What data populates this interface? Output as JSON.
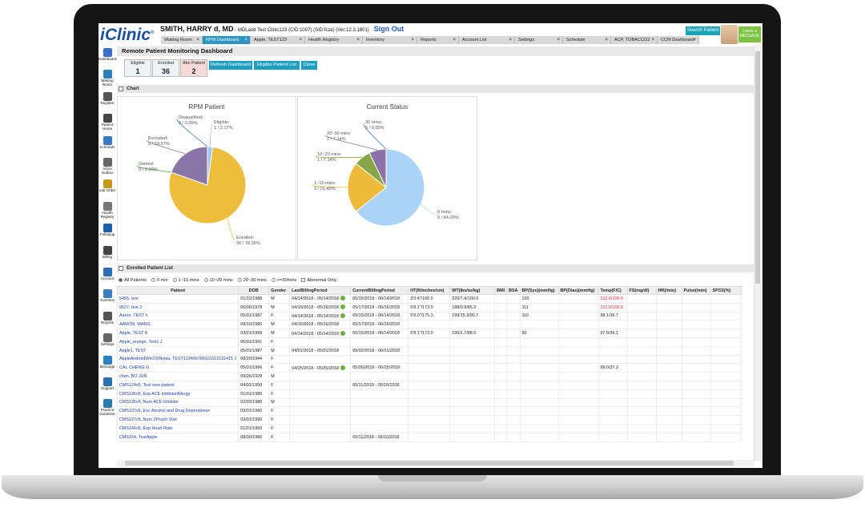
{
  "app": {
    "logo": "iClinic",
    "logo_mark": "®"
  },
  "header": {
    "user_name": "SMITH, HARRY d, MD",
    "user_suffix": " - MDLand Test Clinic123 (CID:1007) (SID:fcze) (Ver:12.3.1801)",
    "sign_out": "Sign Out",
    "search_patient": "Search Patient",
    "leave_message": "Leave a MESSAGE"
  },
  "tabs": [
    {
      "label": "Waiting Room",
      "active": false
    },
    {
      "label": "RPM Dashboard",
      "active": true
    },
    {
      "label": "Apple, TEST123",
      "active": false
    },
    {
      "label": "Health Registry",
      "active": false
    },
    {
      "label": "Inventory",
      "active": false
    },
    {
      "label": "Reports",
      "active": false
    },
    {
      "label": "Account List",
      "active": false
    },
    {
      "label": "Settings",
      "active": false
    },
    {
      "label": "Schedule",
      "active": false
    },
    {
      "label": "ACP, TOBACCO2",
      "active": false
    },
    {
      "label": "CCM Dashboard",
      "active": false
    }
  ],
  "sidebar": [
    {
      "label": "Dashboard",
      "color": "#3a6fc4"
    },
    {
      "label": "Waiting Room",
      "color": "#2a7fb8"
    },
    {
      "label": "Register",
      "color": "#555"
    },
    {
      "label": "Patient Home",
      "color": "#444"
    },
    {
      "label": "Schedule",
      "color": "#3a78c0"
    },
    {
      "label": "Inbox Outbox",
      "color": "#666"
    },
    {
      "label": "Lab Order",
      "color": "#c89a1a"
    },
    {
      "label": "Health Registry",
      "color": "#777"
    },
    {
      "label": "Followup",
      "color": "#1c5fa8"
    },
    {
      "label": "Billing",
      "color": "#444"
    },
    {
      "label": "Account",
      "color": "#2a6fb0"
    },
    {
      "label": "Inventory",
      "color": "#3a7fc0"
    },
    {
      "label": "Reports",
      "color": "#555"
    },
    {
      "label": "Settings",
      "color": "#666"
    },
    {
      "label": "Message",
      "color": "#2a80c0"
    },
    {
      "label": "Support",
      "color": "#2a6fb0"
    },
    {
      "label": "Practice Guideline",
      "color": "#2a7ab0"
    }
  ],
  "page": {
    "title": "Remote Patient Monitoring Dashboard",
    "counters": [
      {
        "label": "Eligible",
        "value": "1"
      },
      {
        "label": "Enrolled",
        "value": "36"
      },
      {
        "label": "Abn Patient",
        "value": "2"
      }
    ],
    "buttons": [
      "Refresh Dashboard",
      "Eligible Patient List",
      "Close"
    ],
    "chart_section": "Chart",
    "list_section": "Enrolled Patient List"
  },
  "chart_data": [
    {
      "type": "pie",
      "title": "RPM Patient",
      "slices": [
        {
          "label": "Eligible:",
          "detail": "1 / 2.17%",
          "value": 1,
          "color": "#9dc5ee"
        },
        {
          "label": "Enrolled:",
          "detail": "36 / 78.26%",
          "value": 36,
          "color": "#efbd3c"
        },
        {
          "label": "Denied:",
          "detail": "0 / 0.00%",
          "value": 0,
          "color": "#5aa040"
        },
        {
          "label": "Excluded:",
          "detail": "9 / 19.57%",
          "value": 9,
          "color": "#8a75a8"
        },
        {
          "label": "Disqualified:",
          "detail": "0 / 0.00%",
          "value": 0,
          "color": "#3b6ebd"
        }
      ]
    },
    {
      "type": "pie",
      "title": "Current Status",
      "slices": [
        {
          "label": "0 mins:",
          "detail": "9 / 64.29%",
          "value": 9,
          "color": "#a9d3f7"
        },
        {
          "label": "1~10 mins:",
          "detail": "3 / 21.43%",
          "value": 3,
          "color": "#edba3a"
        },
        {
          "label": "10~20 mins:",
          "detail": "1 / 7.14%",
          "value": 1,
          "color": "#88a648"
        },
        {
          "label": "20~30 mins:",
          "detail": "1 / 7.14%",
          "value": 1,
          "color": "#8a72a8"
        },
        {
          "label": "30 mins:",
          "detail": "0 / 0.00%",
          "value": 0,
          "color": "#3b6ebd"
        }
      ]
    }
  ],
  "filters": [
    "All Patients",
    "0 min",
    "1~10 mins",
    "10~20 mins",
    "20~30 mins",
    ">=30mins",
    "Abnormal Only"
  ],
  "table": {
    "columns": [
      "Patient",
      "DOB",
      "Gender",
      "LastBillingPeriod",
      "CurrentBillingPeriod",
      "HT(ft/inches/cm)",
      "WT(lbs/oz/kg)",
      "BMI",
      "BSA",
      "BP(Sys)(mmHg)",
      "BP(Dias)(mmHg)",
      "Temp(F/C)",
      "FS(mg/dl)",
      "HR(/min)",
      "Pulse(/min)",
      "SPO2(%)"
    ],
    "rows": [
      [
        "5455, test",
        "01/12/1988",
        "M",
        "04/14/2018 - 05/14/2018",
        "05/15/2018 - 06/14/2018",
        "3'3.4\"/100.0",
        "220/7.4/100.0",
        "",
        "",
        "100",
        "",
        "212.0/100.0",
        "",
        "",
        "",
        ""
      ],
      [
        "9527, test 2",
        "06/06/1978",
        "M",
        "04/16/2018 - 05/16/2018",
        "05/17/2018 - 06/16/2018",
        "5'8.1\"/173.0",
        "188/0.9/85.3",
        "",
        "",
        "111",
        "",
        "212.0/100.0",
        "",
        "",
        "",
        ""
      ],
      [
        "Aaron, TEST h",
        "05/01/1987",
        "F",
        "04/14/2018 - 05/14/2018",
        "05/15/2018 - 06/14/2018",
        "5'9.0\"/175.3",
        "199/15.3/90.7",
        "",
        "",
        "110",
        "",
        "98.1/36.7",
        "",
        "",
        "",
        ""
      ],
      [
        "AARON, WANG",
        "09/10/1990",
        "M",
        "04/16/2018 - 05/16/2018",
        "05/17/2018 - 06/16/2018",
        "",
        "",
        "",
        "",
        "",
        "",
        "",
        "",
        "",
        "",
        ""
      ],
      [
        "Apple, TEST K",
        "03/01/1999",
        "M",
        "04/14/2018 - 05/14/2018",
        "05/15/2018 - 06/14/2018",
        "5'8.1\"/173.0",
        "195/1.7/88.5",
        "",
        "",
        "90",
        "",
        "97.0/36.1",
        "",
        "",
        "",
        ""
      ],
      [
        "Apple_orange, Test1 J",
        "06/01/1991",
        "F",
        "",
        "",
        "",
        "",
        "",
        "",
        "",
        "",
        "",
        "",
        "",
        "",
        ""
      ],
      [
        "Apple1, TEST",
        "05/01/1987",
        "M",
        "04/01/2018 - 05/01/2018",
        "05/02/2018 - 06/01/2018",
        "",
        "",
        "",
        "",
        "",
        "",
        "",
        "",
        "",
        "",
        ""
      ],
      [
        "AppleAndroidWinOSNokia, TEST123456789101112131415 J",
        "08/20/1944",
        "F",
        "",
        "",
        "",
        "",
        "",
        "",
        "",
        "",
        "",
        "",
        "",
        "",
        ""
      ],
      [
        "CAI, CHENG G",
        "05/01/1996",
        "F",
        "04/25/2018 - 05/25/2018",
        "05/26/2018 - 06/25/2018",
        "",
        "",
        "",
        "",
        "",
        "",
        "99.0/37.2",
        "",
        "",
        "",
        ""
      ],
      [
        "chen, BO JUN",
        "09/26/1929",
        "M",
        "",
        "",
        "",
        "",
        "",
        "",
        "",
        "",
        "",
        "",
        "",
        "",
        ""
      ],
      [
        "CMS124v5, Test new patient",
        "04/01/1950",
        "F",
        "",
        "05/11/2018 - 06/10/2018",
        "",
        "",
        "",
        "",
        "",
        "",
        "",
        "",
        "",
        "",
        ""
      ],
      [
        "CMS135v5, Exp ACE InhibitorAllergy",
        "01/01/1980",
        "F",
        "",
        "",
        "",
        "",
        "",
        "",
        "",
        "",
        "",
        "",
        "",
        "",
        ""
      ],
      [
        "CMS135v5, Num ACE Inhibitor",
        "02/02/1980",
        "M",
        "",
        "",
        "",
        "",
        "",
        "",
        "",
        "",
        "",
        "",
        "",
        "",
        ""
      ],
      [
        "CMS137v5, Exc Alcohol and Drug Dependence",
        "03/01/1990",
        "F",
        "",
        "",
        "",
        "",
        "",
        "",
        "",
        "",
        "",
        "",
        "",
        "",
        ""
      ],
      [
        "CMS137v5, Num 2Psych Visit",
        "03/01/1990",
        "F",
        "",
        "",
        "",
        "",
        "",
        "",
        "",
        "",
        "",
        "",
        "",
        "",
        ""
      ],
      [
        "CMS145v5, Exp Heart Rate",
        "01/01/1950",
        "F",
        "",
        "",
        "",
        "",
        "",
        "",
        "",
        "",
        "",
        "",
        "",
        "",
        ""
      ],
      [
        "CMS154, TestApple",
        "08/30/1990",
        "F",
        "",
        "05/11/2018 - 06/10/2018",
        "",
        "",
        "",
        "",
        "",
        "",
        "",
        "",
        "",
        "",
        ""
      ]
    ],
    "checked_rows": [
      0,
      1,
      2,
      4,
      8
    ],
    "red_temp_rows": [
      0,
      1
    ]
  }
}
